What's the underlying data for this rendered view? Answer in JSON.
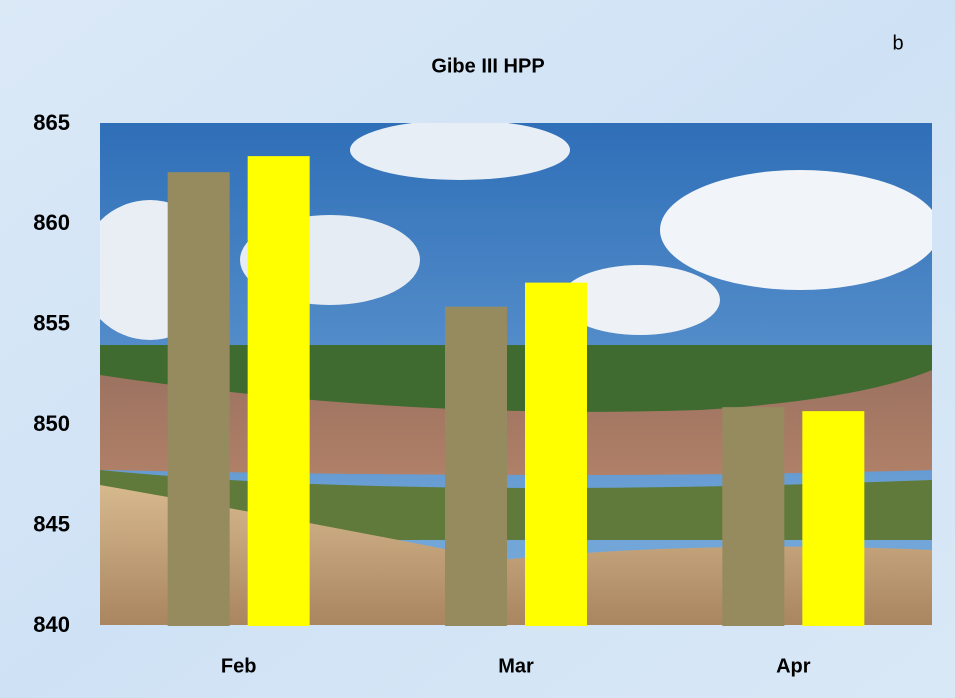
{
  "chart_data": {
    "type": "bar",
    "title": "Gibe III HPP",
    "annotation": "b",
    "categories": [
      "Feb",
      "Mar",
      "Apr"
    ],
    "series": [
      {
        "color": "#958b5f",
        "values": [
          862.6,
          855.9,
          850.9
        ]
      },
      {
        "color": "#ffff00",
        "values": [
          863.4,
          857.1,
          850.7
        ]
      }
    ],
    "ylim": [
      840,
      865
    ],
    "yticks": [
      840,
      845,
      850,
      855,
      860,
      865
    ]
  }
}
